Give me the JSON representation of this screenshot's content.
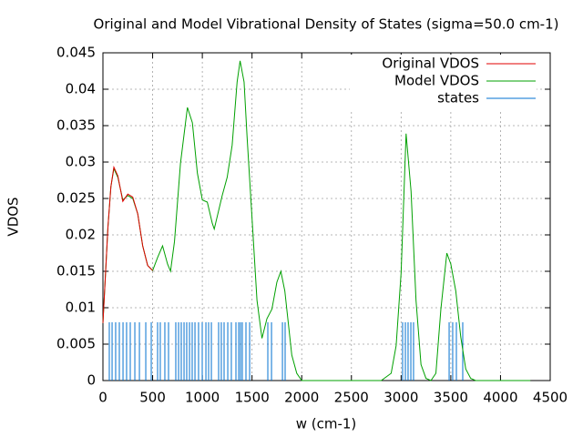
{
  "chart_data": {
    "type": "line",
    "title": "Original and Model Vibrational Density of States (sigma=50.0 cm-1)",
    "x_label": "w (cm-1)",
    "y_label": "VDOS",
    "xlim": [
      0,
      4500
    ],
    "xticks": [
      0,
      500,
      1000,
      1500,
      2000,
      2500,
      3000,
      3500,
      4000,
      4500
    ],
    "ylim": [
      0,
      0.045
    ],
    "yticks": [
      0,
      0.005,
      0.01,
      0.015,
      0.02,
      0.025,
      0.03,
      0.035,
      0.04,
      0.045
    ],
    "grid": true,
    "legend": "top-right",
    "series": [
      {
        "name": "Original VDOS",
        "color": "#e00000",
        "style": "lines",
        "x": [
          0,
          50,
          80,
          110,
          150,
          200,
          250,
          300,
          350,
          400,
          450,
          500
        ],
        "values": [
          0.0079,
          0.021,
          0.0266,
          0.0293,
          0.0281,
          0.0246,
          0.0256,
          0.0252,
          0.0229,
          0.0185,
          0.0158,
          0.0151
        ]
      },
      {
        "name": "Model VDOS",
        "color": "#00a000",
        "style": "lines",
        "x": [
          0,
          50,
          80,
          110,
          150,
          200,
          250,
          300,
          350,
          400,
          450,
          500,
          550,
          600,
          650,
          680,
          720,
          780,
          850,
          900,
          950,
          1000,
          1050,
          1100,
          1120,
          1200,
          1250,
          1300,
          1350,
          1380,
          1420,
          1450,
          1500,
          1550,
          1600,
          1650,
          1700,
          1750,
          1790,
          1830,
          1900,
          1950,
          2000,
          2800,
          2900,
          2950,
          3000,
          3050,
          3100,
          3150,
          3200,
          3250,
          3300,
          3350,
          3400,
          3460,
          3500,
          3550,
          3600,
          3650,
          3700,
          3750,
          4300
        ],
        "values": [
          0.0079,
          0.021,
          0.0266,
          0.0291,
          0.0279,
          0.0248,
          0.0254,
          0.025,
          0.0229,
          0.0185,
          0.0158,
          0.0151,
          0.0169,
          0.0185,
          0.016,
          0.015,
          0.0191,
          0.0298,
          0.0375,
          0.0354,
          0.0285,
          0.0248,
          0.0245,
          0.0216,
          0.0208,
          0.0254,
          0.0279,
          0.0323,
          0.041,
          0.0439,
          0.041,
          0.0335,
          0.0223,
          0.011,
          0.0058,
          0.0085,
          0.0098,
          0.0135,
          0.015,
          0.0123,
          0.0035,
          0.001,
          0,
          0,
          0.001,
          0.0048,
          0.0148,
          0.0339,
          0.026,
          0.011,
          0.0022,
          0.0003,
          0,
          0.001,
          0.0098,
          0.0175,
          0.016,
          0.0123,
          0.006,
          0.0016,
          0.0003,
          0,
          0
        ]
      },
      {
        "name": "states",
        "color": "#0070d0",
        "style": "impulses",
        "x": [
          64,
          92,
          128,
          165,
          202,
          238,
          275,
          321,
          367,
          431,
          486,
          550,
          577,
          623,
          660,
          733,
          761,
          788,
          816,
          843,
          871,
          898,
          926,
          962,
          999,
          1036,
          1063,
          1091,
          1164,
          1191,
          1219,
          1256,
          1292,
          1338,
          1366,
          1384,
          1402,
          1439,
          1476,
          1659,
          1696,
          1806,
          1833,
          3015,
          3043,
          3070,
          3098,
          3125,
          3483,
          3519,
          3556,
          3620
        ],
        "values": [
          0.008,
          0.008,
          0.008,
          0.008,
          0.008,
          0.008,
          0.008,
          0.008,
          0.008,
          0.008,
          0.008,
          0.008,
          0.008,
          0.008,
          0.008,
          0.008,
          0.008,
          0.008,
          0.008,
          0.008,
          0.008,
          0.008,
          0.008,
          0.008,
          0.008,
          0.008,
          0.008,
          0.008,
          0.008,
          0.008,
          0.008,
          0.008,
          0.008,
          0.008,
          0.008,
          0.008,
          0.008,
          0.008,
          0.008,
          0.008,
          0.008,
          0.008,
          0.008,
          0.008,
          0.008,
          0.008,
          0.008,
          0.008,
          0.008,
          0.008,
          0.008,
          0.008
        ]
      }
    ]
  }
}
